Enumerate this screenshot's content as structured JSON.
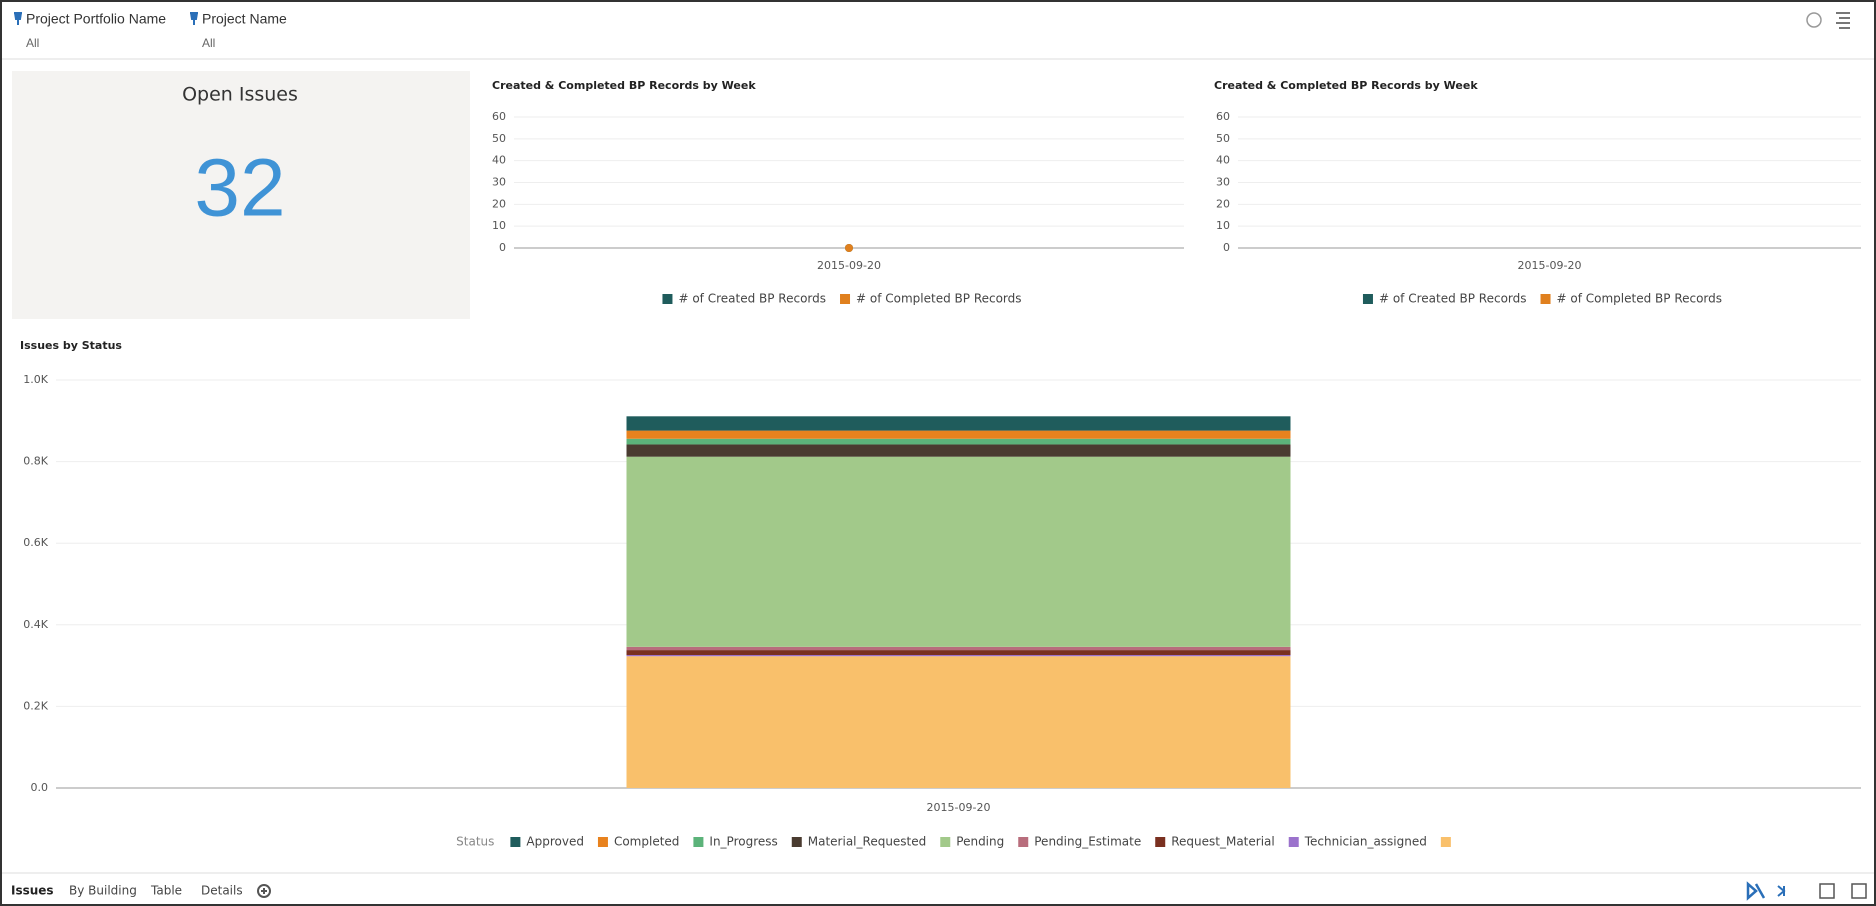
{
  "filters": [
    {
      "label": "Project Portfolio Name",
      "value": "All"
    },
    {
      "label": "Project Name",
      "value": "All"
    }
  ],
  "kpi": {
    "title": "Open Issues",
    "value": 32
  },
  "chart_data": [
    {
      "type": "line",
      "title": "Created & Completed BP Records by Week",
      "categories": [
        "2015-09-20"
      ],
      "series": [
        {
          "name": "# of Created BP Records",
          "color": "#1f5c5c",
          "values": [
            0
          ]
        },
        {
          "name": "# of Completed BP Records",
          "color": "#e0801e",
          "values": [
            0
          ]
        }
      ],
      "ylim": [
        0,
        60
      ],
      "yticks": [
        0,
        10,
        20,
        30,
        40,
        50,
        60
      ],
      "grid": true
    },
    {
      "type": "line",
      "title": "Created & Completed BP Records by Week",
      "categories": [
        "2015-09-20"
      ],
      "series": [
        {
          "name": "# of Created BP Records",
          "color": "#1f5c5c",
          "values": [
            null
          ]
        },
        {
          "name": "# of Completed BP Records",
          "color": "#e0801e",
          "values": [
            null
          ]
        }
      ],
      "ylim": [
        0,
        60
      ],
      "yticks": [
        0,
        10,
        20,
        30,
        40,
        50,
        60
      ],
      "grid": true
    },
    {
      "type": "stacked_bar",
      "title": "Issues by Status",
      "legend_title": "Status",
      "categories": [
        "2015-09-20"
      ],
      "series": [
        {
          "name": "Approved",
          "color": "#1f5c5c",
          "values": [
            35
          ]
        },
        {
          "name": "Completed",
          "color": "#e8821e",
          "values": [
            20
          ]
        },
        {
          "name": "In_Progress",
          "color": "#5cb37a",
          "values": [
            14
          ]
        },
        {
          "name": "Material_Requested",
          "color": "#4a3b30",
          "values": [
            30
          ]
        },
        {
          "name": "Pending",
          "color": "#a2c98a",
          "values": [
            466
          ]
        },
        {
          "name": "Pending_Estimate",
          "color": "#b86d7c",
          "values": [
            8
          ]
        },
        {
          "name": "Request_Material",
          "color": "#7a3020",
          "values": [
            12
          ]
        },
        {
          "name": "Technician_assigned",
          "color": "#9b72cc",
          "values": [
            3
          ]
        },
        {
          "name": null,
          "color": "#f9c06b",
          "values": [
            323
          ]
        }
      ],
      "ylim": [
        0,
        1000
      ],
      "yticks": [
        {
          "value": 0,
          "label": "0.0"
        },
        {
          "value": 200,
          "label": "0.2K"
        },
        {
          "value": 400,
          "label": "0.4K"
        },
        {
          "value": 600,
          "label": "0.6K"
        },
        {
          "value": 800,
          "label": "0.8K"
        },
        {
          "value": 1000,
          "label": "1.0K"
        }
      ],
      "grid": true
    }
  ],
  "tabs": [
    "Issues",
    "By Building",
    "Table",
    "Details"
  ]
}
